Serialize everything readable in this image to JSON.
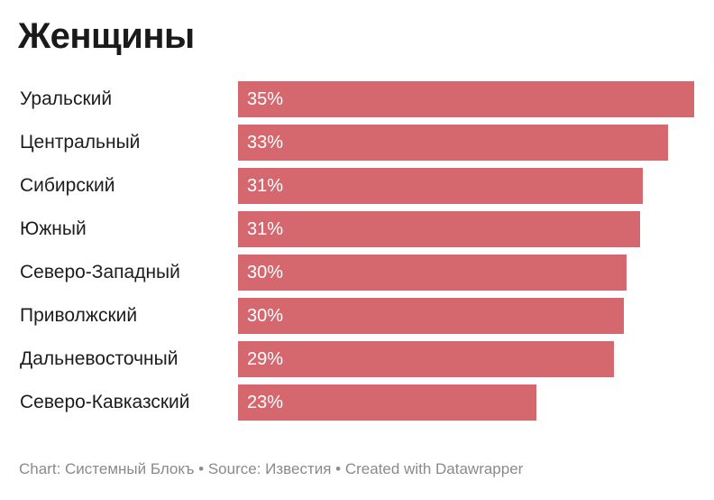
{
  "title": "Женщины",
  "footer": "Chart: Системный Блокъ • Source: Известия • Created with Datawrapper",
  "colors": {
    "bar": "#d5686f",
    "value_text": "#ffffff",
    "label_text": "#1d1d1d",
    "footer_text": "#8a8a8a"
  },
  "chart_data": {
    "type": "bar",
    "orientation": "horizontal",
    "title": "Женщины",
    "categories": [
      "Уральский",
      "Центральный",
      "Сибирский",
      "Южный",
      "Северо-Западный",
      "Приволжский",
      "Дальневосточный",
      "Северо-Кавказский"
    ],
    "values": [
      35.2,
      33.2,
      31.2,
      31.0,
      30.0,
      29.8,
      29.0,
      23.0
    ],
    "value_labels": [
      "35%",
      "33%",
      "31%",
      "31%",
      "30%",
      "30%",
      "29%",
      "23%"
    ],
    "xlim": [
      0,
      35.2
    ],
    "grid": false,
    "legend": "none"
  }
}
